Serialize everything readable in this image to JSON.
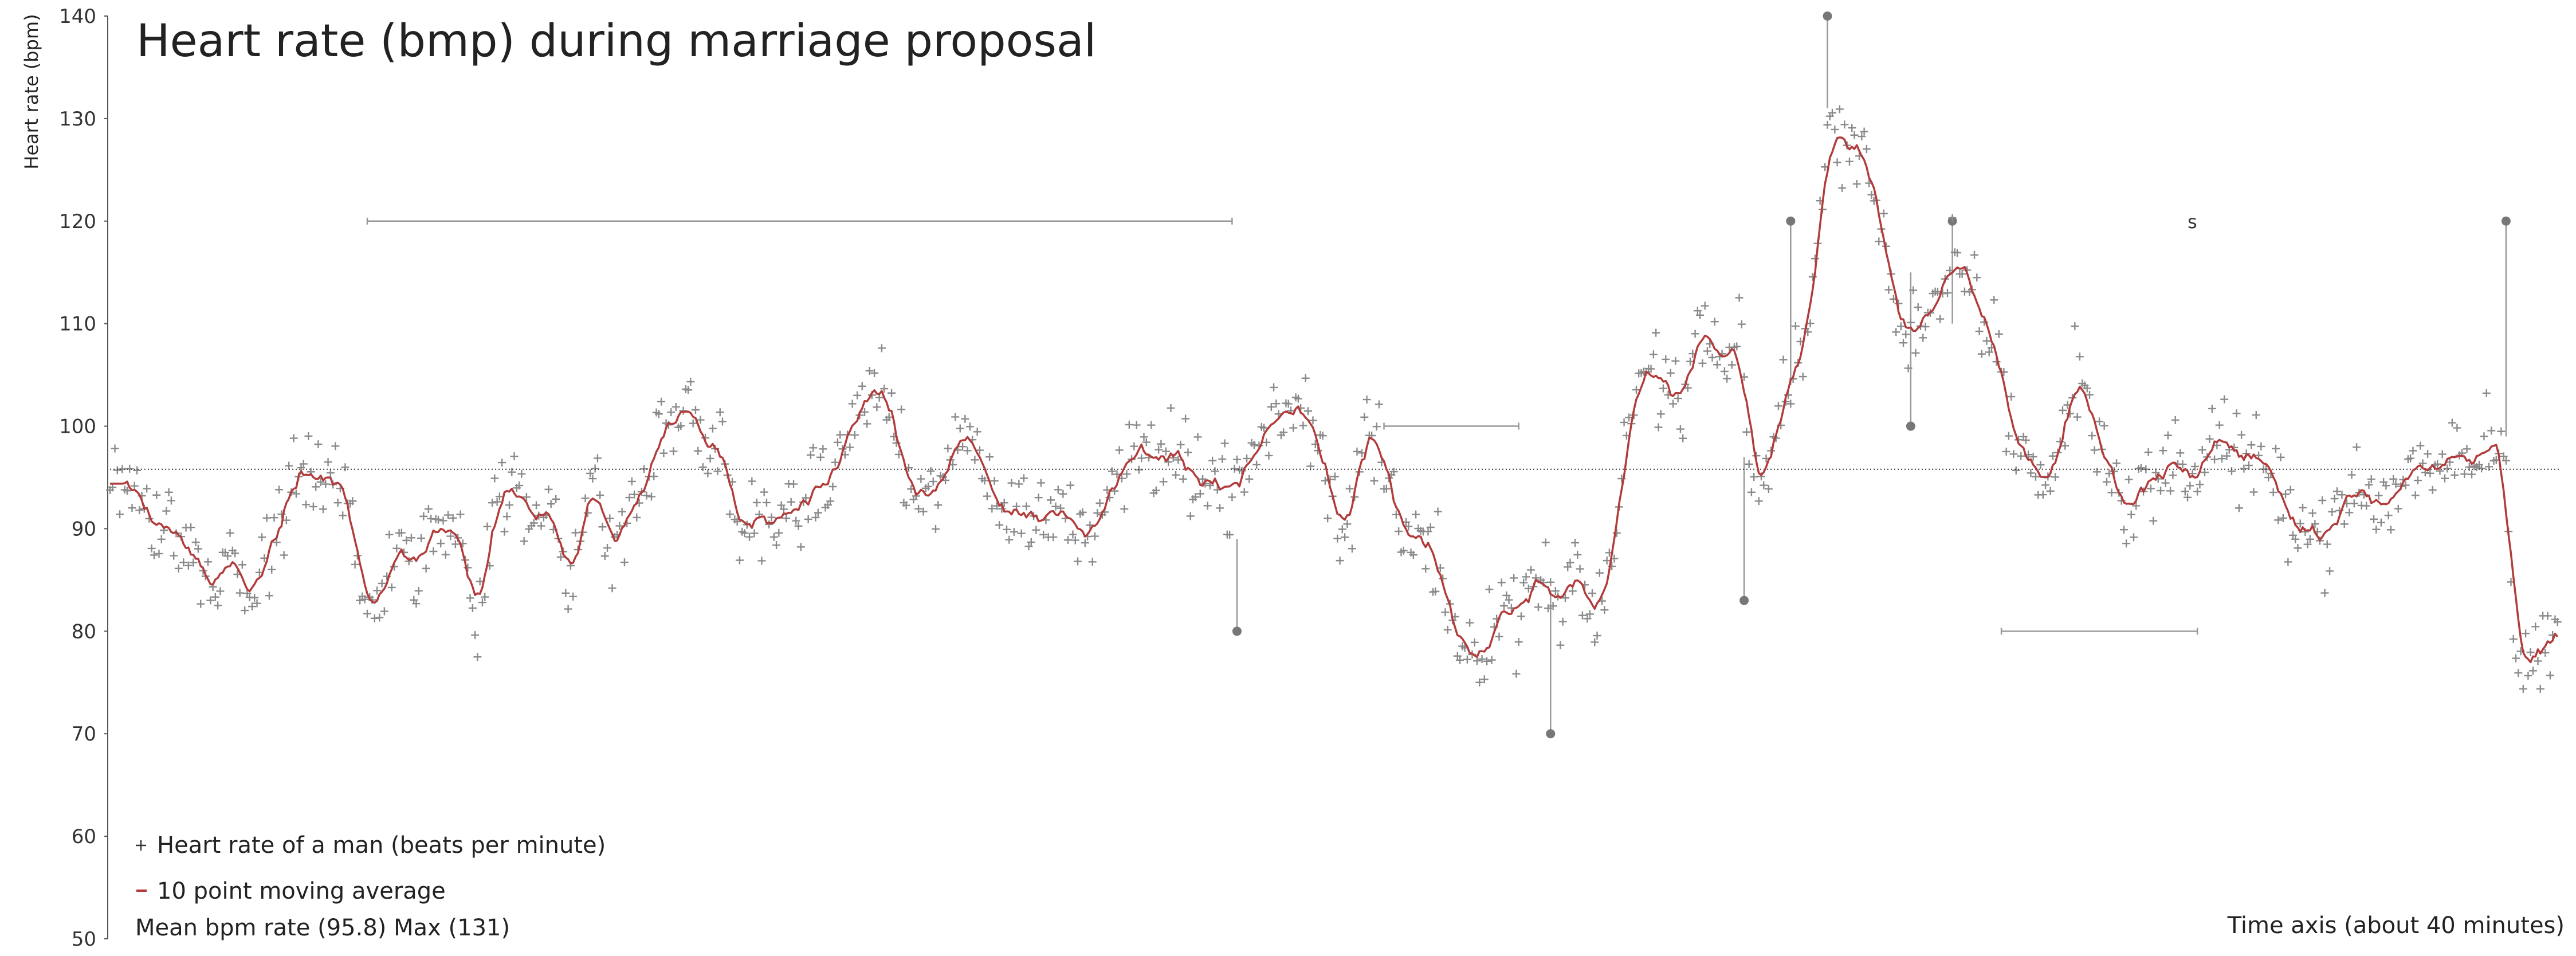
{
  "chart_data": {
    "type": "scatter",
    "title": "Heart rate (bmp) during marriage proposal",
    "ylabel": "Heart rate (bpm)",
    "xlabel": "Time axis (about 40 minutes)",
    "ylim": [
      50,
      140
    ],
    "xlim": [
      0,
      1000
    ],
    "yticks": [
      "50",
      "60",
      "70",
      "80",
      "90",
      "100",
      "110",
      "120",
      "130",
      "140"
    ],
    "grid": false,
    "legend_position": "bottom-left",
    "colors": {
      "points": "#8a8a8a",
      "moving_average": "#b23b3b",
      "mean": "#333333",
      "annotation": "#999999"
    },
    "legend": {
      "points_label": "Heart rate of a man (beats per minute)",
      "average_label": "10 point moving average"
    },
    "stats_text": "Mean bpm rate (95.8) Max (131)",
    "mean": 95.8,
    "max": 131,
    "series": [
      {
        "name": "Heart rate of a man (beats per minute)",
        "kind": "scatter",
        "anchors_x": [
          0,
          10,
          17,
          25,
          35,
          42,
          50,
          57,
          62,
          68,
          75,
          82,
          90,
          97,
          103,
          108,
          118,
          125,
          130,
          135,
          142,
          150,
          157,
          162,
          167,
          172,
          180,
          187,
          197,
          205,
          215,
          228,
          237,
          245,
          250,
          255,
          262,
          268,
          272,
          278,
          287,
          295,
          303,
          310,
          320,
          325,
          333,
          340,
          347,
          352,
          358,
          365,
          372,
          378,
          385,
          392,
          398,
          405,
          412,
          418,
          425,
          432,
          440,
          447,
          452,
          458,
          465,
          472,
          480,
          487,
          492,
          497,
          505,
          512,
          520,
          527,
          535,
          542,
          550,
          557,
          563,
          568,
          575,
          580,
          587,
          592,
          598,
          605,
          612,
          620,
          628,
          635,
          642,
          648,
          655,
          660,
          665,
          670,
          675,
          680,
          688,
          693,
          698,
          702,
          707,
          712,
          717,
          722,
          727,
          732,
          740,
          747,
          753,
          760,
          765,
          770,
          775,
          782,
          787,
          792,
          797,
          802,
          810,
          817,
          825,
          832,
          840,
          847,
          855,
          862,
          870,
          877,
          885,
          892,
          898,
          903,
          908,
          913,
          918,
          925,
          932,
          940,
          948,
          955,
          962,
          970,
          977,
          983,
          990,
          995,
          1000
        ],
        "anchors_y": [
          95,
          95,
          90,
          91,
          87,
          84,
          88,
          81,
          86,
          90,
          94,
          96,
          94,
          93,
          84,
          83,
          87,
          86,
          90,
          89,
          91,
          82,
          92,
          94,
          93,
          90,
          93,
          86,
          94,
          88,
          93,
          100,
          102,
          97,
          100,
          89,
          90,
          91,
          92,
          90,
          94,
          95,
          100,
          104,
          101,
          94,
          92,
          95,
          98,
          99,
          96,
          91,
          92,
          91,
          92,
          91,
          90,
          93,
          95,
          101,
          95,
          98,
          96,
          93,
          95,
          92,
          98,
          100,
          100,
          103,
          100,
          95,
          89,
          100,
          96,
          89,
          90,
          86,
          80,
          78,
          80,
          83,
          81,
          85,
          86,
          82,
          87,
          81,
          86,
          101,
          105,
          104,
          102,
          108,
          109,
          104,
          110,
          96,
          94,
          100,
          107,
          108,
          120,
          130,
          128,
          127,
          125,
          121,
          115,
          109,
          110,
          111,
          116,
          113,
          110,
          108,
          100,
          98,
          95,
          94,
          99,
          106,
          100,
          95,
          92,
          95,
          96,
          95,
          97,
          99,
          97,
          96,
          93,
          92,
          90,
          89,
          91,
          92,
          94,
          92,
          93,
          96,
          96,
          98,
          97,
          99,
          98,
          77,
          77,
          78,
          81
        ]
      },
      {
        "name": "10 point moving average",
        "kind": "line",
        "smoothed_from": "Heart rate of a man (beats per minute)",
        "window": 10
      }
    ]
  },
  "annotations": [
    {
      "kind": "range",
      "x1": 105,
      "x2": 458,
      "y": 120
    },
    {
      "kind": "range",
      "x1": 520,
      "x2": 575,
      "y": 100
    },
    {
      "kind": "range",
      "x1": 772,
      "x2": 852,
      "y": 80
    },
    {
      "kind": "marker",
      "x": 460,
      "y1": 80,
      "y2": 89
    },
    {
      "kind": "marker",
      "x": 588,
      "y1": 70,
      "y2": 84
    },
    {
      "kind": "marker",
      "x": 667,
      "y1": 83,
      "y2": 97
    },
    {
      "kind": "marker",
      "x": 686,
      "y1": 104,
      "y2": 120
    },
    {
      "kind": "marker",
      "x": 701,
      "y1": 131,
      "y2": 140
    },
    {
      "kind": "marker",
      "x": 735,
      "y1": 100,
      "y2": 115
    },
    {
      "kind": "marker",
      "x": 752,
      "y1": 110,
      "y2": 120
    },
    {
      "kind": "marker",
      "x": 978,
      "y1": 99,
      "y2": 120
    },
    {
      "kind": "text",
      "x": 848,
      "y": 120,
      "text": "s"
    }
  ]
}
